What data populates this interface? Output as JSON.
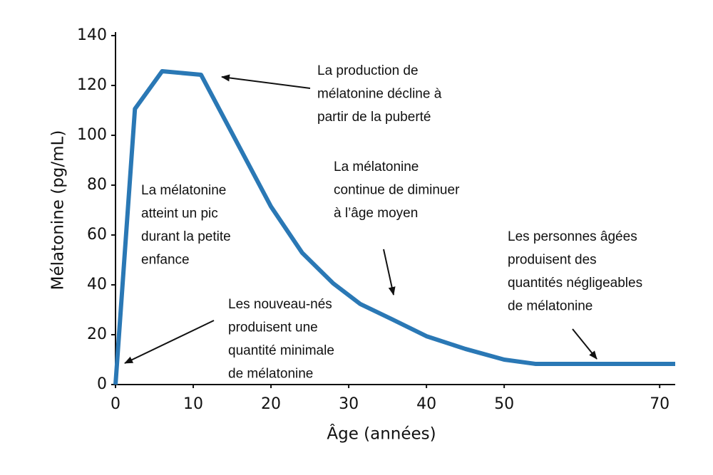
{
  "chart_data": {
    "type": "line",
    "x_label": "Âge (années)",
    "y_label": "Mélatonine (pg/mL)",
    "x": [
      0,
      2.5,
      6,
      11,
      20,
      24,
      28,
      31.5,
      35.5,
      40,
      45,
      50,
      54,
      72
    ],
    "series": [
      {
        "color": "#2a78b5",
        "values": [
          0,
          110.6,
          125.7,
          124.3,
          71.4,
          52.9,
          40.6,
          32.3,
          26.3,
          19.4,
          14.3,
          10,
          8.3,
          8.3
        ]
      }
    ],
    "xlim": [
      0,
      72
    ],
    "xticks": [
      0,
      10,
      20,
      30,
      40,
      50,
      70
    ],
    "ylim": [
      0,
      140
    ],
    "yticks": [
      0,
      20,
      40,
      60,
      80,
      100,
      120,
      140
    ],
    "grid": false,
    "annotations": [
      {
        "lines": [
          "La mélatonine",
          "atteint un pic",
          "durant la petite",
          "enfance"
        ]
      },
      {
        "lines": [
          "Les nouveau-nés",
          "produisent une",
          "quantité minimale",
          "de mélatonine"
        ]
      },
      {
        "lines": [
          "La production de",
          "mélatonine décline à",
          "partir de la puberté"
        ]
      },
      {
        "lines": [
          "La mélatonine",
          "continue de diminuer",
          "à l’âge moyen"
        ]
      },
      {
        "lines": [
          "Les personnes âgées",
          "produisent des",
          "quantités négligeables",
          "de mélatonine"
        ]
      }
    ]
  }
}
